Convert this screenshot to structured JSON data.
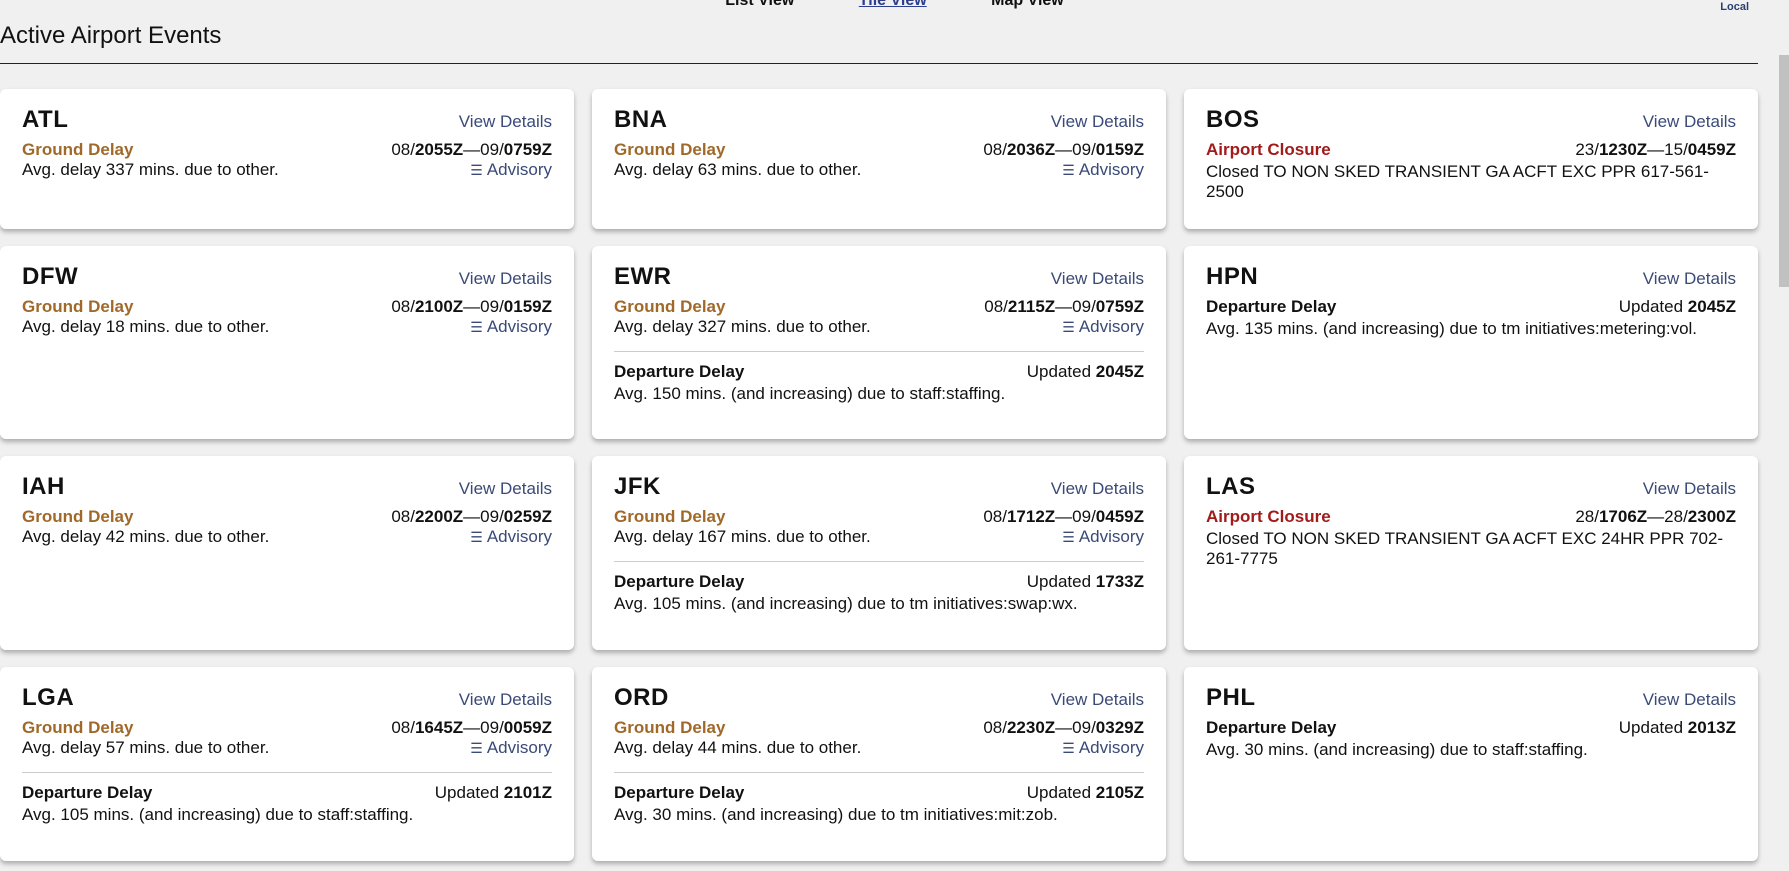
{
  "nav": {
    "items": [
      "List View",
      "Tile View",
      "Map View"
    ],
    "active": 1,
    "timezone": "Local"
  },
  "title": "Active Airport Events",
  "labels": {
    "view_details": "View Details",
    "advisory": "Advisory",
    "updated": "Updated"
  },
  "colors": {
    "ground_delay": "#a0692a",
    "airport_closure": "#a11b1b",
    "link": "#3a4a78"
  },
  "cards": [
    {
      "code": "ATL",
      "events": [
        {
          "type": "Ground Delay",
          "kind": "gd",
          "start_day": "08/",
          "start": "2055Z",
          "end_day": "09/",
          "end": "0759Z",
          "desc": "Avg. delay 337 mins. due to other.",
          "advisory": true
        }
      ]
    },
    {
      "code": "BNA",
      "events": [
        {
          "type": "Ground Delay",
          "kind": "gd",
          "start_day": "08/",
          "start": "2036Z",
          "end_day": "09/",
          "end": "0159Z",
          "desc": "Avg. delay 63 mins. due to other.",
          "advisory": true
        }
      ]
    },
    {
      "code": "BOS",
      "events": [
        {
          "type": "Airport Closure",
          "kind": "ac",
          "start_day": "23/",
          "start": "1230Z",
          "end_day": "15/",
          "end": "0459Z",
          "desc": "Closed TO NON SKED TRANSIENT GA ACFT EXC PPR 617-561-2500"
        }
      ]
    },
    {
      "code": "DFW",
      "events": [
        {
          "type": "Ground Delay",
          "kind": "gd",
          "start_day": "08/",
          "start": "2100Z",
          "end_day": "09/",
          "end": "0159Z",
          "desc": "Avg. delay 18 mins. due to other.",
          "advisory": true
        }
      ]
    },
    {
      "code": "EWR",
      "events": [
        {
          "type": "Ground Delay",
          "kind": "gd",
          "start_day": "08/",
          "start": "2115Z",
          "end_day": "09/",
          "end": "0759Z",
          "desc": "Avg. delay 327 mins. due to other.",
          "advisory": true
        },
        {
          "type": "Departure Delay",
          "kind": "dd",
          "updated": "2045Z",
          "desc": "Avg. 150 mins. (and increasing) due to staff:staffing."
        }
      ]
    },
    {
      "code": "HPN",
      "events": [
        {
          "type": "Departure Delay",
          "kind": "dd",
          "updated": "2045Z",
          "desc": "Avg. 135 mins. (and increasing) due to tm initiatives:metering:vol."
        }
      ]
    },
    {
      "code": "IAH",
      "events": [
        {
          "type": "Ground Delay",
          "kind": "gd",
          "start_day": "08/",
          "start": "2200Z",
          "end_day": "09/",
          "end": "0259Z",
          "desc": "Avg. delay 42 mins. due to other.",
          "advisory": true
        }
      ]
    },
    {
      "code": "JFK",
      "events": [
        {
          "type": "Ground Delay",
          "kind": "gd",
          "start_day": "08/",
          "start": "1712Z",
          "end_day": "09/",
          "end": "0459Z",
          "desc": "Avg. delay 167 mins. due to other.",
          "advisory": true
        },
        {
          "type": "Departure Delay",
          "kind": "dd",
          "updated": "1733Z",
          "desc": "Avg. 105 mins. (and increasing) due to tm initiatives:swap:wx."
        }
      ]
    },
    {
      "code": "LAS",
      "events": [
        {
          "type": "Airport Closure",
          "kind": "ac",
          "start_day": "28/",
          "start": "1706Z",
          "end_day": "28/",
          "end": "2300Z",
          "desc": "Closed TO NON SKED TRANSIENT GA ACFT EXC 24HR PPR 702-261-7775"
        }
      ]
    },
    {
      "code": "LGA",
      "events": [
        {
          "type": "Ground Delay",
          "kind": "gd",
          "start_day": "08/",
          "start": "1645Z",
          "end_day": "09/",
          "end": "0059Z",
          "desc": "Avg. delay 57 mins. due to other.",
          "advisory": true
        },
        {
          "type": "Departure Delay",
          "kind": "dd",
          "updated": "2101Z",
          "desc": "Avg. 105 mins. (and increasing) due to staff:staffing."
        }
      ]
    },
    {
      "code": "ORD",
      "events": [
        {
          "type": "Ground Delay",
          "kind": "gd",
          "start_day": "08/",
          "start": "2230Z",
          "end_day": "09/",
          "end": "0329Z",
          "desc": "Avg. delay 44 mins. due to other.",
          "advisory": true
        },
        {
          "type": "Departure Delay",
          "kind": "dd",
          "updated": "2105Z",
          "desc": "Avg. 30 mins. (and increasing) due to tm initiatives:mit:zob."
        }
      ]
    },
    {
      "code": "PHL",
      "events": [
        {
          "type": "Departure Delay",
          "kind": "dd",
          "updated": "2013Z",
          "desc": "Avg. 30 mins. (and increasing) due to staff:staffing."
        }
      ]
    }
  ]
}
